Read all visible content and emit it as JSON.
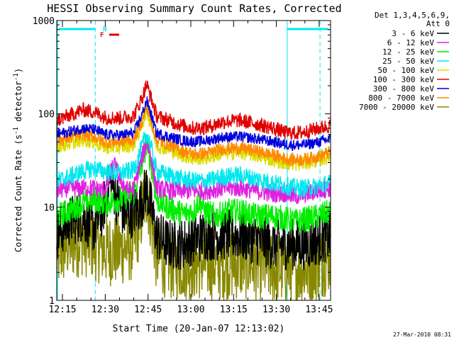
{
  "chart_data": {
    "type": "line",
    "title": "HESSI Observing Summary Count Rates, Corrected",
    "xlabel": "Start Time (20-Jan-07 12:13:02)",
    "ylabel": "Corrected Count Rate (s",
    "ylabel_sup1": "-1",
    "ylabel_mid": " detector",
    "ylabel_sup2": "-1",
    "ylabel_end": ")",
    "xlim_min": [
      0,
      96
    ],
    "ylim": [
      1,
      1000
    ],
    "yscale": "log",
    "x_ticks": [
      {
        "min": 2,
        "label": "12:15"
      },
      {
        "min": 17,
        "label": "12:30"
      },
      {
        "min": 32,
        "label": "12:45"
      },
      {
        "min": 47,
        "label": "13:00"
      },
      {
        "min": 62,
        "label": "13:15"
      },
      {
        "min": 77,
        "label": "13:30"
      },
      {
        "min": 92,
        "label": "13:45"
      }
    ],
    "y_ticks": [
      {
        "value": 1,
        "label": "1"
      },
      {
        "value": 10,
        "label": "10"
      },
      {
        "value": 100,
        "label": "100"
      },
      {
        "value": 1000,
        "label": "1000"
      }
    ],
    "legend": {
      "placement": "right",
      "header1": "Det 1,3,4,5,6,9,",
      "header2": "Att 0",
      "entries": [
        {
          "label": "3 - 6 keV",
          "color": "#000000"
        },
        {
          "label": "6 - 12 keV",
          "color": "#e020e0"
        },
        {
          "label": "12 - 25 keV",
          "color": "#00ee00"
        },
        {
          "label": "25 - 50 keV",
          "color": "#00e8ee"
        },
        {
          "label": "50 - 100 keV",
          "color": "#dddd00"
        },
        {
          "label": "100 - 300 keV",
          "color": "#e00000"
        },
        {
          "label": "300 - 800 keV",
          "color": "#0000dd"
        },
        {
          "label": "800 - 7000 keV",
          "color": "#ff8800"
        },
        {
          "label": "7000 - 20000 keV",
          "color": "#888800"
        }
      ]
    },
    "flags": [
      {
        "label": "N",
        "color": "#00e8ee"
      },
      {
        "label": "F",
        "color": "#e00000"
      }
    ],
    "night_boundaries_min": [
      13.5,
      80.8,
      92.3
    ],
    "series": [
      {
        "name": "100 - 300 keV",
        "color": "#e00000",
        "noise": 0.08,
        "points": [
          [
            0,
            85
          ],
          [
            4,
            95
          ],
          [
            9,
            110
          ],
          [
            13,
            105
          ],
          [
            17,
            92
          ],
          [
            22,
            90
          ],
          [
            27,
            95
          ],
          [
            30,
            150
          ],
          [
            31.5,
            210
          ],
          [
            33,
            150
          ],
          [
            35,
            95
          ],
          [
            39,
            85
          ],
          [
            44,
            75
          ],
          [
            48,
            70
          ],
          [
            53,
            72
          ],
          [
            58,
            82
          ],
          [
            64,
            85
          ],
          [
            70,
            78
          ],
          [
            76,
            70
          ],
          [
            80,
            63
          ],
          [
            84,
            62
          ],
          [
            88,
            65
          ],
          [
            92,
            70
          ],
          [
            96,
            75
          ]
        ]
      },
      {
        "name": "300 - 800 keV",
        "color": "#0000dd",
        "noise": 0.06,
        "points": [
          [
            0,
            60
          ],
          [
            4,
            64
          ],
          [
            9,
            70
          ],
          [
            13,
            68
          ],
          [
            17,
            60
          ],
          [
            22,
            59
          ],
          [
            27,
            62
          ],
          [
            30,
            100
          ],
          [
            31.5,
            140
          ],
          [
            33,
            100
          ],
          [
            35,
            62
          ],
          [
            39,
            57
          ],
          [
            44,
            52
          ],
          [
            48,
            50
          ],
          [
            53,
            52
          ],
          [
            58,
            56
          ],
          [
            64,
            57
          ],
          [
            70,
            54
          ],
          [
            76,
            50
          ],
          [
            80,
            47
          ],
          [
            84,
            46
          ],
          [
            88,
            47
          ],
          [
            92,
            50
          ],
          [
            96,
            54
          ]
        ]
      },
      {
        "name": "800 - 7000 keV",
        "color": "#ff8800",
        "noise": 0.07,
        "points": [
          [
            0,
            52
          ],
          [
            4,
            55
          ],
          [
            9,
            60
          ],
          [
            13,
            57
          ],
          [
            17,
            50
          ],
          [
            22,
            50
          ],
          [
            27,
            53
          ],
          [
            30,
            85
          ],
          [
            31.5,
            120
          ],
          [
            33,
            85
          ],
          [
            35,
            52
          ],
          [
            39,
            47
          ],
          [
            44,
            40
          ],
          [
            48,
            37
          ],
          [
            53,
            38
          ],
          [
            58,
            42
          ],
          [
            64,
            43
          ],
          [
            70,
            40
          ],
          [
            76,
            36
          ],
          [
            80,
            33
          ],
          [
            84,
            32
          ],
          [
            88,
            33
          ],
          [
            92,
            35
          ],
          [
            96,
            39
          ]
        ]
      },
      {
        "name": "50 - 100 keV",
        "color": "#dddd00",
        "noise": 0.08,
        "points": [
          [
            0,
            45
          ],
          [
            4,
            48
          ],
          [
            9,
            53
          ],
          [
            13,
            50
          ],
          [
            17,
            44
          ],
          [
            22,
            44
          ],
          [
            27,
            47
          ],
          [
            30,
            78
          ],
          [
            31.5,
            110
          ],
          [
            33,
            78
          ],
          [
            35,
            46
          ],
          [
            39,
            42
          ],
          [
            44,
            36
          ],
          [
            48,
            33
          ],
          [
            53,
            34
          ],
          [
            58,
            38
          ],
          [
            64,
            39
          ],
          [
            70,
            36
          ],
          [
            76,
            32
          ],
          [
            80,
            30
          ],
          [
            84,
            29
          ],
          [
            88,
            30
          ],
          [
            92,
            32
          ],
          [
            96,
            35
          ]
        ]
      },
      {
        "name": "25 - 50 keV",
        "color": "#00e8ee",
        "noise": 0.1,
        "points": [
          [
            0,
            19
          ],
          [
            4,
            21
          ],
          [
            9,
            24
          ],
          [
            13,
            26
          ],
          [
            17,
            24
          ],
          [
            22,
            23
          ],
          [
            27,
            25
          ],
          [
            30,
            45
          ],
          [
            31.5,
            62
          ],
          [
            33,
            45
          ],
          [
            35,
            24
          ],
          [
            39,
            22
          ],
          [
            44,
            20
          ],
          [
            48,
            19
          ],
          [
            53,
            19
          ],
          [
            58,
            21
          ],
          [
            64,
            22
          ],
          [
            70,
            20
          ],
          [
            76,
            18
          ],
          [
            80,
            17
          ],
          [
            84,
            16
          ],
          [
            88,
            16
          ],
          [
            92,
            17
          ],
          [
            96,
            18
          ]
        ]
      },
      {
        "name": "6 - 12 keV",
        "color": "#e020e0",
        "noise": 0.1,
        "points": [
          [
            0,
            15
          ],
          [
            4,
            16
          ],
          [
            9,
            16
          ],
          [
            13,
            16
          ],
          [
            16,
            15
          ],
          [
            18,
            18
          ],
          [
            20,
            30
          ],
          [
            22,
            20
          ],
          [
            25,
            15
          ],
          [
            27,
            16
          ],
          [
            30,
            35
          ],
          [
            31.5,
            50
          ],
          [
            33,
            35
          ],
          [
            35,
            16
          ],
          [
            39,
            15
          ],
          [
            44,
            15
          ],
          [
            48,
            15
          ],
          [
            53,
            15
          ],
          [
            58,
            16
          ],
          [
            64,
            16
          ],
          [
            70,
            15
          ],
          [
            76,
            14
          ],
          [
            80,
            14
          ],
          [
            84,
            13
          ],
          [
            88,
            14
          ],
          [
            92,
            15
          ],
          [
            96,
            16
          ]
        ]
      },
      {
        "name": "12 - 25 keV",
        "color": "#00ee00",
        "noise": 0.14,
        "points": [
          [
            0,
            8
          ],
          [
            4,
            9
          ],
          [
            9,
            11
          ],
          [
            13,
            12
          ],
          [
            17,
            11
          ],
          [
            22,
            12
          ],
          [
            27,
            14
          ],
          [
            30,
            30
          ],
          [
            31.5,
            48
          ],
          [
            33,
            30
          ],
          [
            35,
            12
          ],
          [
            39,
            10
          ],
          [
            44,
            8.5
          ],
          [
            48,
            9
          ],
          [
            50,
            12
          ],
          [
            52,
            9
          ],
          [
            56,
            8
          ],
          [
            60,
            9
          ],
          [
            64,
            9
          ],
          [
            70,
            8
          ],
          [
            76,
            8
          ],
          [
            80,
            7.5
          ],
          [
            84,
            7
          ],
          [
            88,
            7.5
          ],
          [
            92,
            8
          ],
          [
            96,
            9
          ]
        ]
      },
      {
        "name": "3 - 6 keV",
        "color": "#000000",
        "noise": 0.28,
        "points": [
          [
            0,
            5
          ],
          [
            4,
            7
          ],
          [
            9,
            8
          ],
          [
            13,
            6
          ],
          [
            16,
            9
          ],
          [
            19,
            20
          ],
          [
            21,
            12
          ],
          [
            24,
            8
          ],
          [
            27,
            9
          ],
          [
            29,
            10
          ],
          [
            31.5,
            16
          ],
          [
            33,
            10
          ],
          [
            35,
            5
          ],
          [
            39,
            4
          ],
          [
            44,
            4
          ],
          [
            48,
            4.5
          ],
          [
            52,
            5
          ],
          [
            56,
            5
          ],
          [
            60,
            5
          ],
          [
            64,
            5
          ],
          [
            70,
            4.5
          ],
          [
            76,
            4
          ],
          [
            80,
            4
          ],
          [
            84,
            4
          ],
          [
            88,
            4
          ],
          [
            92,
            4.5
          ],
          [
            96,
            5
          ]
        ]
      },
      {
        "name": "7000 - 20000 keV",
        "color": "#888800",
        "noise": 0.4,
        "points": [
          [
            0,
            3
          ],
          [
            4,
            4
          ],
          [
            9,
            4.5
          ],
          [
            13,
            4
          ],
          [
            17,
            3.5
          ],
          [
            22,
            3.5
          ],
          [
            27,
            4
          ],
          [
            30,
            9
          ],
          [
            31.5,
            15
          ],
          [
            33,
            8
          ],
          [
            35,
            3
          ],
          [
            39,
            2.5
          ],
          [
            44,
            2.5
          ],
          [
            48,
            2.5
          ],
          [
            53,
            2.5
          ],
          [
            58,
            2.5
          ],
          [
            64,
            2.5
          ],
          [
            70,
            2.5
          ],
          [
            76,
            2.2
          ],
          [
            80,
            2.2
          ],
          [
            84,
            2.2
          ],
          [
            88,
            2.2
          ],
          [
            92,
            2.5
          ],
          [
            96,
            3
          ]
        ]
      }
    ]
  },
  "footer": {
    "timestamp": "27-Mar-2010 08:31"
  }
}
